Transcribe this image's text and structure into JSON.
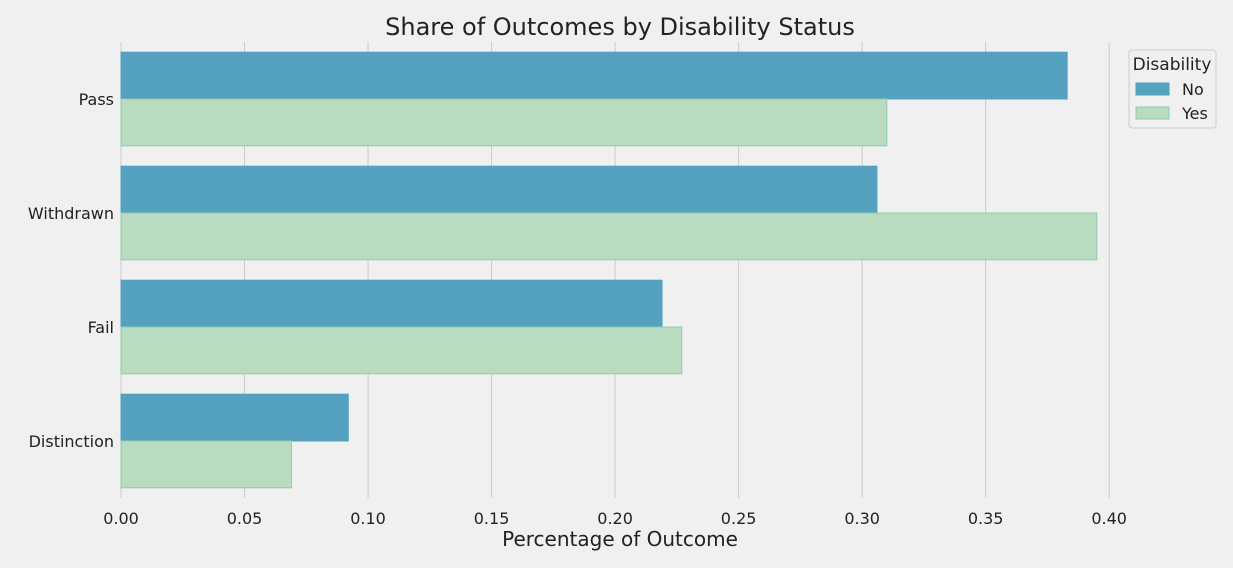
{
  "chart_data": {
    "type": "bar",
    "orientation": "horizontal",
    "title": "Share of Outcomes by Disability Status",
    "xlabel": "Percentage of Outcome",
    "ylabel": "",
    "categories": [
      "Pass",
      "Withdrawn",
      "Fail",
      "Distinction"
    ],
    "series": [
      {
        "name": "No",
        "values": [
          0.383,
          0.306,
          0.219,
          0.092
        ],
        "color": "#54a1c0",
        "edge": "#54a1c0"
      },
      {
        "name": "Yes",
        "values": [
          0.31,
          0.395,
          0.227,
          0.069
        ],
        "color": "#b9dcc0",
        "edge": "#8fcbb0"
      }
    ],
    "xlim": [
      0,
      0.44
    ],
    "xticks": [
      "0.00",
      "0.05",
      "0.10",
      "0.15",
      "0.20",
      "0.25",
      "0.30",
      "0.35",
      "0.40"
    ],
    "grid": "x",
    "background": "#f0f0f0",
    "grid_color": "#cbcbcb",
    "legend": {
      "title": "Disability",
      "placement": "top-right"
    }
  }
}
